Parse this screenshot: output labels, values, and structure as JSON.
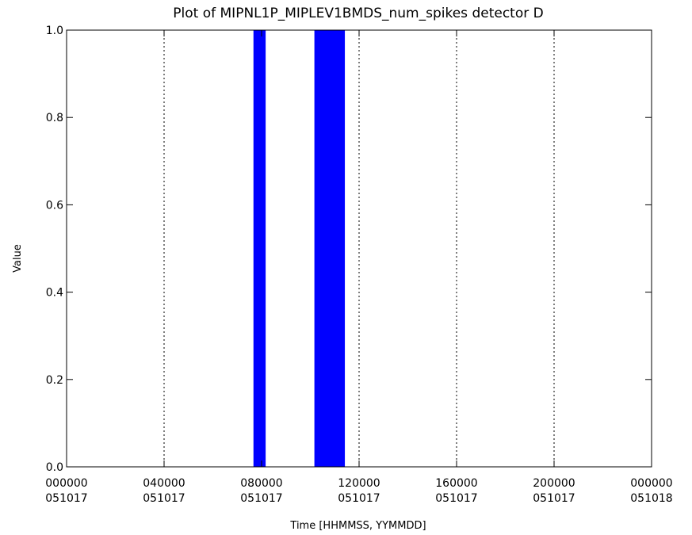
{
  "chart_data": {
    "type": "bar",
    "title": "Plot of MIPNL1P_MIPLEV1BMDS_num_spikes detector D",
    "xlabel": "Time [HHMMSS, YYMMDD]",
    "ylabel": "Value",
    "xlim": [
      "2005-10-17T00:00:00",
      "2005-10-18T00:00:00"
    ],
    "ylim": [
      0.0,
      1.0
    ],
    "x_ticks": [
      {
        "time": "000000",
        "date": "051017"
      },
      {
        "time": "040000",
        "date": "051017"
      },
      {
        "time": "080000",
        "date": "051017"
      },
      {
        "time": "120000",
        "date": "051017"
      },
      {
        "time": "160000",
        "date": "051017"
      },
      {
        "time": "200000",
        "date": "051017"
      },
      {
        "time": "000000",
        "date": "051018"
      }
    ],
    "y_ticks": [
      "0.0",
      "0.2",
      "0.4",
      "0.6",
      "0.8",
      "1.0"
    ],
    "grid": "vertical dotted lines at each x tick",
    "series": [
      {
        "color": "#0000ff",
        "bars": [
          {
            "start": "2005-10-17T07:40:00",
            "end": "2005-10-17T08:10:00",
            "value": 1.0
          },
          {
            "start": "2005-10-17T10:10:00",
            "end": "2005-10-17T11:25:00",
            "value": 1.0
          }
        ]
      }
    ]
  }
}
